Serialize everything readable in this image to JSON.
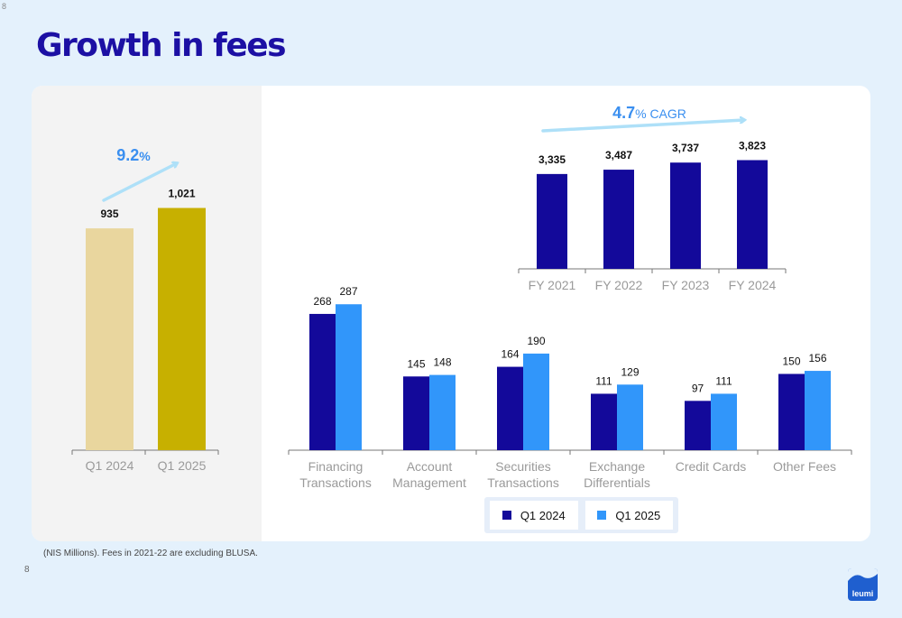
{
  "page": {
    "number_top": "8",
    "title": "Growth in fees",
    "footnote": "(NIS Millions). Fees in 2021-22 are excluding BLUSA.",
    "number_bottom": "8",
    "logo_text": "leumi"
  },
  "colors": {
    "q1_2024_left": "#e9d69e",
    "q1_2025_left": "#c7b000",
    "annual_bar": "#13099a",
    "q1_2024": "#13099a",
    "q1_2025": "#3196fa",
    "arrow": "#aee0f8",
    "growth_label": "#3a8ff0"
  },
  "chart_data": [
    {
      "id": "quarterly",
      "type": "bar",
      "categories": [
        "Q1 2024",
        "Q1 2025"
      ],
      "values": [
        935,
        1021
      ],
      "value_labels": [
        "935",
        "1,021"
      ],
      "growth_num": "9.2",
      "growth_suffix": "%",
      "ylim": [
        0,
        1350
      ]
    },
    {
      "id": "annual",
      "type": "bar",
      "categories": [
        "FY 2021",
        "FY 2022",
        "FY 2023",
        "FY 2024"
      ],
      "values": [
        3335,
        3487,
        3737,
        3823
      ],
      "value_labels": [
        "3,335",
        "3,487",
        "3,737",
        "3,823"
      ],
      "growth_num": "4.7",
      "growth_suffix": "% CAGR",
      "ylim": [
        0,
        4600
      ]
    },
    {
      "id": "breakdown",
      "type": "bar",
      "categories": [
        [
          "Financing",
          "Transactions"
        ],
        [
          "Account",
          "Management"
        ],
        [
          "Securities",
          "Transactions"
        ],
        [
          "Exchange",
          "Differentials"
        ],
        [
          "Credit Cards"
        ],
        [
          "Other Fees"
        ]
      ],
      "series": [
        {
          "name": "Q1 2024",
          "values": [
            268,
            145,
            164,
            111,
            97,
            150
          ]
        },
        {
          "name": "Q1 2025",
          "values": [
            287,
            148,
            190,
            129,
            111,
            156
          ]
        }
      ],
      "ylim": [
        0,
        330
      ]
    }
  ]
}
